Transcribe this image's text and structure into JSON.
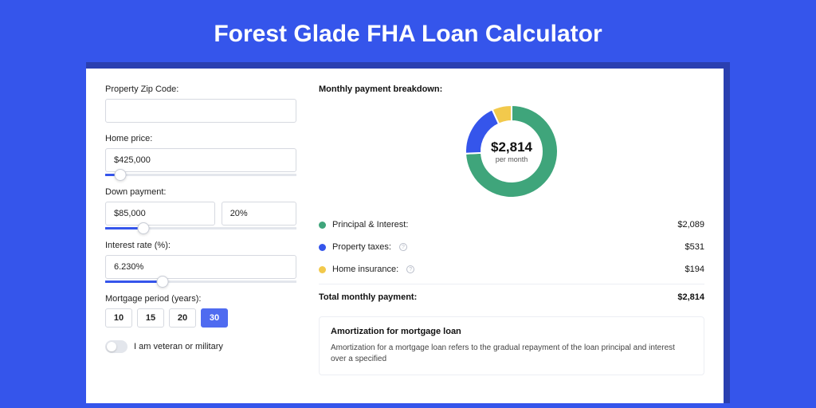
{
  "page": {
    "title": "Forest Glade FHA Loan Calculator",
    "background_color": "#3555eb",
    "shadow_color": "#2a3fb0",
    "panel_color": "#ffffff"
  },
  "form": {
    "zip": {
      "label": "Property Zip Code:",
      "value": ""
    },
    "home_price": {
      "label": "Home price:",
      "value": "$425,000",
      "slider_pct": 8
    },
    "down_payment": {
      "label": "Down payment:",
      "value": "$85,000",
      "pct": "20%",
      "slider_pct": 20
    },
    "interest_rate": {
      "label": "Interest rate (%):",
      "value": "6.230%",
      "slider_pct": 30
    },
    "mortgage_period": {
      "label": "Mortgage period (years):",
      "options": [
        "10",
        "15",
        "20",
        "30"
      ],
      "selected": "30"
    },
    "veteran": {
      "label": "I am veteran or military",
      "checked": false
    }
  },
  "breakdown": {
    "title": "Monthly payment breakdown:",
    "donut": {
      "amount": "$2,814",
      "sub": "per month",
      "segments": [
        {
          "key": "principal_interest",
          "label": "Principal & Interest:",
          "value": "$2,089",
          "value_num": 2089,
          "color": "#3fa57b"
        },
        {
          "key": "property_taxes",
          "label": "Property taxes:",
          "value": "$531",
          "value_num": 531,
          "color": "#3555eb",
          "info": true
        },
        {
          "key": "home_insurance",
          "label": "Home insurance:",
          "value": "$194",
          "value_num": 194,
          "color": "#f2c94c",
          "info": true
        }
      ]
    },
    "total": {
      "label": "Total monthly payment:",
      "value": "$2,814"
    }
  },
  "amortization": {
    "title": "Amortization for mortgage loan",
    "text": "Amortization for a mortgage loan refers to the gradual repayment of the loan principal and interest over a specified"
  }
}
